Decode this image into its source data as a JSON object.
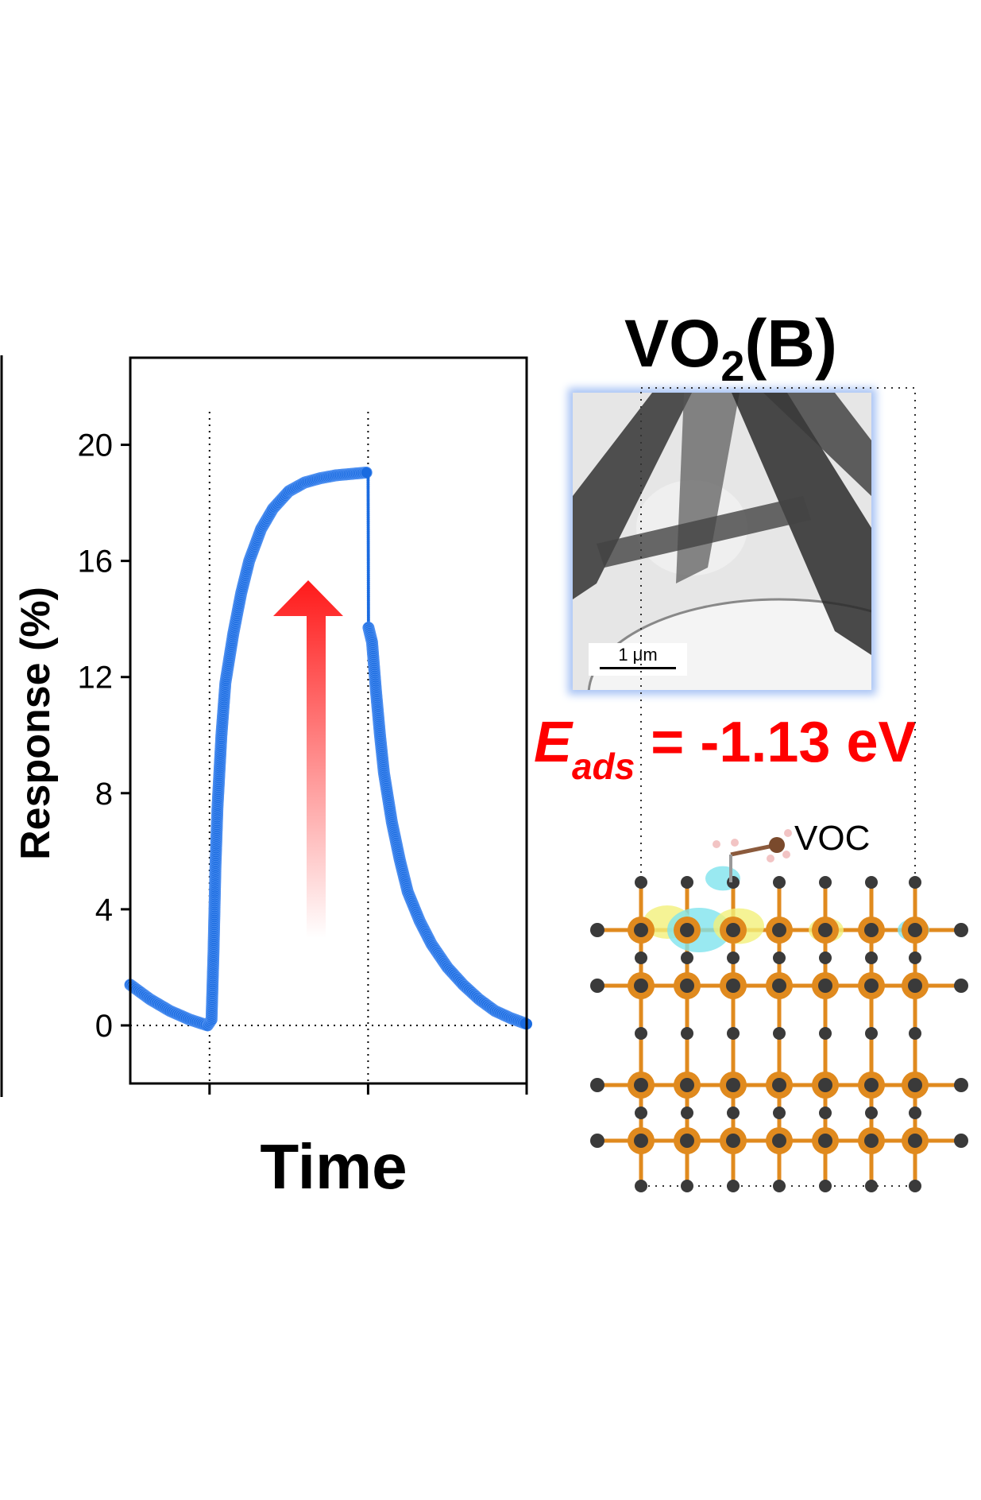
{
  "chart_data": {
    "type": "scatter",
    "xlabel": "Time",
    "ylabel": "Response (%)",
    "xlim": [
      0,
      100
    ],
    "ylim": [
      -2,
      23
    ],
    "yticks": [
      0,
      4,
      8,
      12,
      16,
      20
    ],
    "xticks": [
      20,
      60,
      100
    ],
    "xtick_labels": [
      "",
      "",
      ""
    ],
    "reference_lines": {
      "x": [
        20,
        60
      ],
      "y": [
        0
      ]
    },
    "series": [
      {
        "name": "VO2(B) response",
        "color": "#1a6be0",
        "x": [
          0,
          5,
          10,
          15,
          19.5,
          20.5,
          21,
          21.5,
          22,
          23,
          24,
          26,
          28,
          30,
          33,
          36,
          40,
          44,
          48,
          52,
          56,
          60,
          60.1,
          61,
          62,
          63,
          64,
          66,
          68,
          70,
          73,
          76,
          80,
          84,
          88,
          92,
          96,
          100
        ],
        "y": [
          1.4,
          0.9,
          0.5,
          0.2,
          0.0,
          0.2,
          2.5,
          5.5,
          7.5,
          10,
          11.8,
          13.5,
          14.9,
          16,
          17.1,
          17.8,
          18.4,
          18.7,
          18.85,
          18.95,
          19,
          19.05,
          13.7,
          13.2,
          11.5,
          10,
          8.7,
          7,
          5.7,
          4.6,
          3.6,
          2.8,
          2,
          1.4,
          0.9,
          0.5,
          0.25,
          0.05
        ]
      }
    ]
  },
  "annotation_arrow": {
    "direction": "up",
    "color": "#ff1a1a"
  },
  "right_panel": {
    "title_main": "VO",
    "title_sub": "2",
    "title_suffix": "(B)",
    "scale_bar": "1 μm",
    "eads_symbol": "E",
    "eads_sub": "ads",
    "eads_value": " = -1.13 eV",
    "molecule_label": "VOC"
  },
  "colors": {
    "vanadium": "#e08a1e",
    "oxygen": "#3a3a3a",
    "charge_plus": "#f3f07a",
    "charge_minus": "#7fe3ee"
  }
}
